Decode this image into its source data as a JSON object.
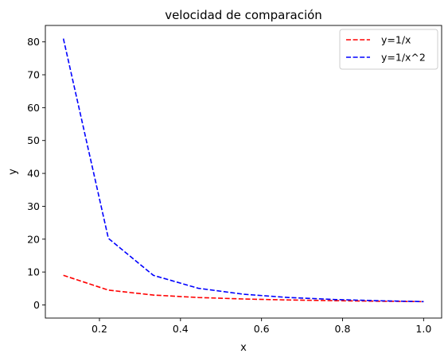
{
  "chart_data": {
    "type": "line",
    "title": "velocidad de comparación",
    "xlabel": "x",
    "ylabel": "y",
    "xlim": [
      0.0665,
      1.0445
    ],
    "ylim": [
      -4.0,
      85.0
    ],
    "x_ticks": [
      0.2,
      0.4,
      0.6,
      0.8,
      1.0
    ],
    "x_tick_labels": [
      "0.2",
      "0.4",
      "0.6",
      "0.8",
      "1.0"
    ],
    "y_ticks": [
      0,
      10,
      20,
      30,
      40,
      50,
      60,
      70,
      80
    ],
    "y_tick_labels": [
      "0",
      "10",
      "20",
      "30",
      "40",
      "50",
      "60",
      "70",
      "80"
    ],
    "grid": false,
    "legend_position": "top-right",
    "x": [
      0.111,
      0.222,
      0.333,
      0.444,
      0.556,
      0.667,
      0.778,
      0.889,
      1.0
    ],
    "series": [
      {
        "name": "y=1/x",
        "color": "#ff0000",
        "linestyle": "dashed",
        "values": [
          9.0,
          4.5,
          3.0,
          2.25,
          1.8,
          1.5,
          1.29,
          1.125,
          1.0
        ]
      },
      {
        "name": "y=1/x^2",
        "color": "#0000ff",
        "linestyle": "dashed",
        "values": [
          81.0,
          20.25,
          9.0,
          5.06,
          3.24,
          2.25,
          1.65,
          1.27,
          1.0
        ]
      }
    ]
  }
}
